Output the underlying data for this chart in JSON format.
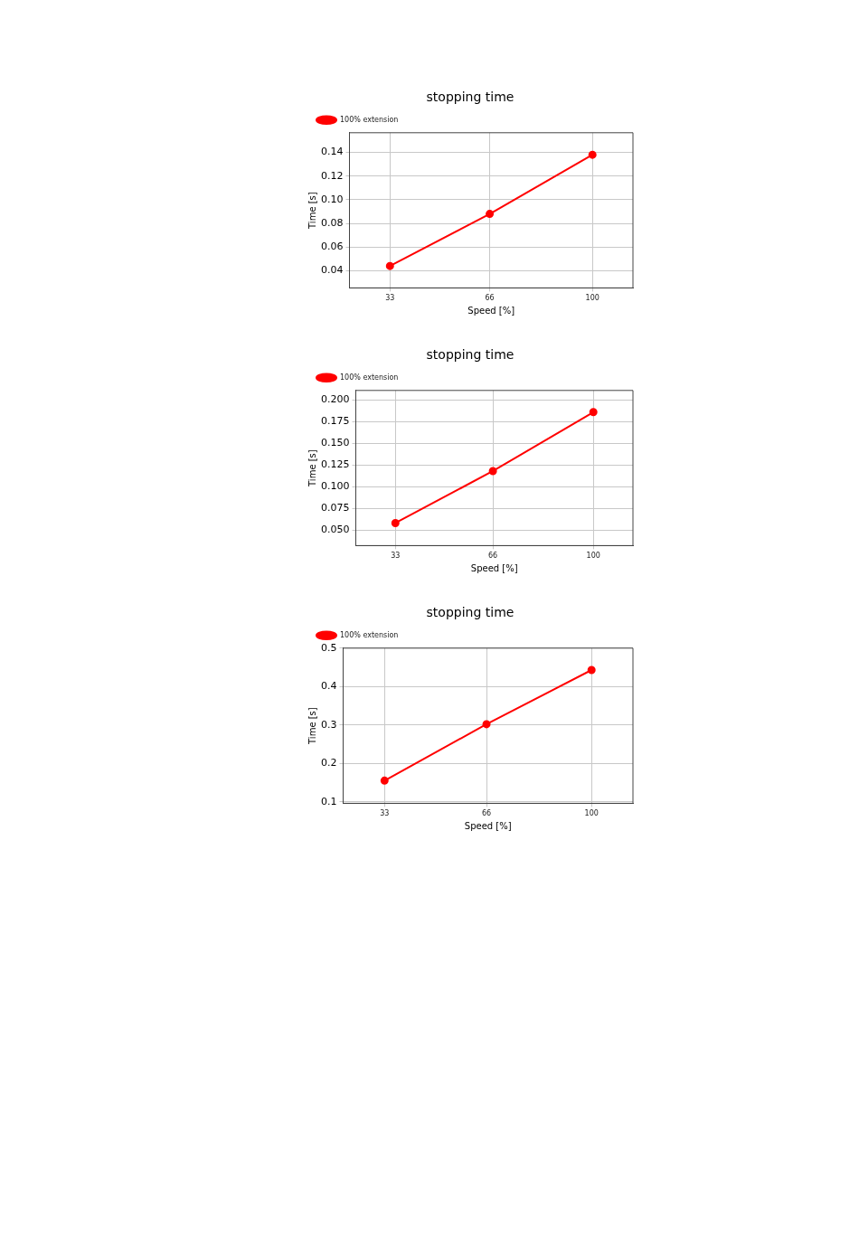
{
  "chart_data": [
    {
      "type": "line",
      "title": "stopping time",
      "xlabel": "Speed [%]",
      "ylabel": "Time [s]",
      "x": [
        33,
        66,
        100
      ],
      "xlim": [
        19.6,
        113.4
      ],
      "xticks": [
        33,
        66,
        100
      ],
      "ylim": [
        0.0255,
        0.1566
      ],
      "yticks": [
        {
          "value": 0.04,
          "label": "0.04"
        },
        {
          "value": 0.06,
          "label": "0.06"
        },
        {
          "value": 0.08,
          "label": "0.08"
        },
        {
          "value": 0.1,
          "label": "0.10"
        },
        {
          "value": 0.12,
          "label": "0.12"
        },
        {
          "value": 0.14,
          "label": "0.14"
        }
      ],
      "grid": true,
      "legend": "top left",
      "marker": "circle",
      "line_style": "solid",
      "series": [
        {
          "name": "100% extension",
          "color": "#ff0000",
          "values": [
            0.044,
            0.088,
            0.138
          ]
        }
      ]
    },
    {
      "type": "line",
      "title": "stopping time",
      "xlabel": "Speed [%]",
      "ylabel": "Time [s]",
      "x": [
        33,
        66,
        100
      ],
      "xlim": [
        19.6,
        113.4
      ],
      "xticks": [
        33,
        66,
        100
      ],
      "ylim": [
        0.032,
        0.211
      ],
      "yticks": [
        {
          "value": 0.05,
          "label": "0.050"
        },
        {
          "value": 0.075,
          "label": "0.075"
        },
        {
          "value": 0.1,
          "label": "0.100"
        },
        {
          "value": 0.125,
          "label": "0.125"
        },
        {
          "value": 0.15,
          "label": "0.150"
        },
        {
          "value": 0.175,
          "label": "0.175"
        },
        {
          "value": 0.2,
          "label": "0.200"
        }
      ],
      "grid": true,
      "legend": "top left",
      "marker": "circle",
      "line_style": "solid",
      "series": [
        {
          "name": "100% extension",
          "color": "#ff0000",
          "values": [
            0.058,
            0.118,
            0.186
          ]
        }
      ]
    },
    {
      "type": "line",
      "title": "stopping time",
      "xlabel": "Speed [%]",
      "ylabel": "Time [s]",
      "x": [
        33,
        66,
        100
      ],
      "xlim": [
        19.6,
        113.4
      ],
      "xticks": [
        33,
        66,
        100
      ],
      "ylim": [
        0.096,
        0.5
      ],
      "yticks": [
        0.1,
        0.2,
        0.3,
        0.4,
        0.5
      ],
      "grid": true,
      "legend": "top left",
      "marker": "circle",
      "line_style": "solid",
      "series": [
        {
          "name": "100% extension",
          "color": "#ff0000",
          "values": [
            0.155,
            0.302,
            0.443
          ]
        }
      ]
    }
  ]
}
